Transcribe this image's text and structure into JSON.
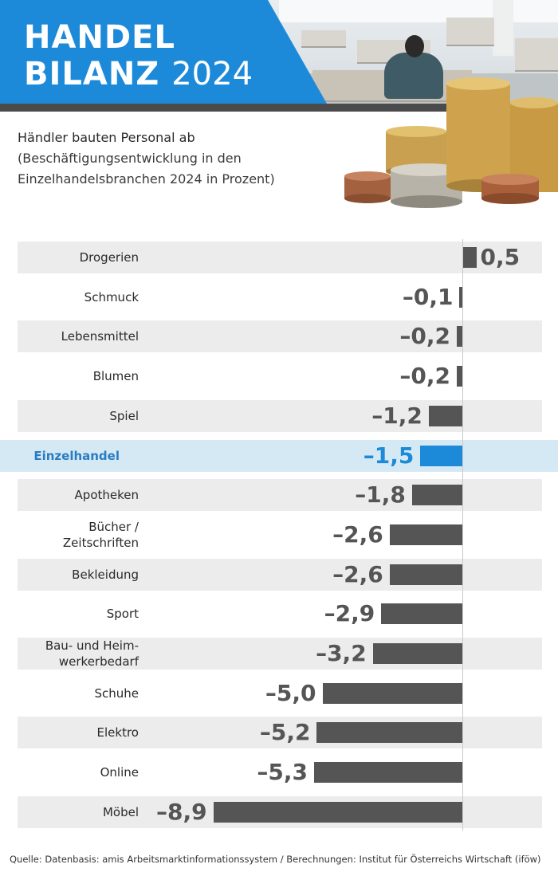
{
  "header": {
    "title_line1": "HANDEL",
    "title_line2_word": "BILANZ",
    "title_line2_year": "2024",
    "banner_color": "#1d8ad9"
  },
  "subtitle": {
    "line1": "Händler bauten Personal ab",
    "line2": "(Beschäftigungsentwicklung in den",
    "line3": "Einzelhandelsbranchen 2024 in Prozent)"
  },
  "chart_data": {
    "type": "bar",
    "orientation": "horizontal",
    "categories": [
      "Drogerien",
      "Schmuck",
      "Lebensmittel",
      "Blumen",
      "Spiel",
      "Einzelhandel",
      "Apotheken",
      "Bücher / Zeitschriften",
      "Bekleidung",
      "Sport",
      "Bau- und Heimwerkerbedarf",
      "Schuhe",
      "Elektro",
      "Online",
      "Möbel"
    ],
    "category_lines": [
      [
        "Drogerien"
      ],
      [
        "Schmuck"
      ],
      [
        "Lebensmittel"
      ],
      [
        "Blumen"
      ],
      [
        "Spiel"
      ],
      [
        "Einzelhandel"
      ],
      [
        "Apotheken"
      ],
      [
        "Bücher /",
        "Zeitschriften"
      ],
      [
        "Bekleidung"
      ],
      [
        "Sport"
      ],
      [
        "Bau- und Heim-",
        "werkerbedarf"
      ],
      [
        "Schuhe"
      ],
      [
        "Elektro"
      ],
      [
        "Online"
      ],
      [
        "Möbel"
      ]
    ],
    "values": [
      0.5,
      -0.1,
      -0.2,
      -0.2,
      -1.2,
      -1.5,
      -1.8,
      -2.6,
      -2.6,
      -2.9,
      -3.2,
      -5.0,
      -5.2,
      -5.3,
      -8.9
    ],
    "labels": [
      "0,5",
      "–0,1",
      "–0,2",
      "–0,2",
      "–1,2",
      "–1,5",
      "–1,8",
      "–2,6",
      "–2,6",
      "–2,9",
      "–3,2",
      "–5,0",
      "–5,2",
      "–5,3",
      "–8,9"
    ],
    "highlight_index": 5,
    "title": "Händler bauten Personal ab",
    "xlabel": "",
    "ylabel": "",
    "unit": "Prozent",
    "bar_color": "#555555",
    "highlight_color": "#1d8ad9",
    "highlight_bg": "#d5e9f5",
    "row_shade": "#ececec",
    "grid": false
  },
  "source": "Quelle: Datenbasis: amis Arbeitsmarktinformationssystem / Berechnungen: Institut für Österreichs Wirtschaft (iföw)"
}
